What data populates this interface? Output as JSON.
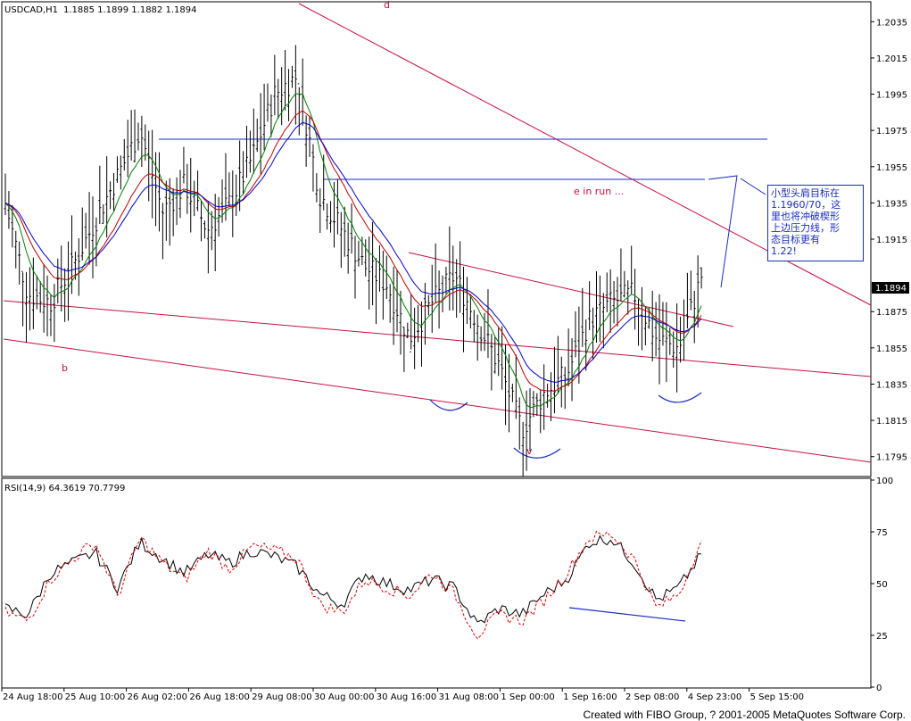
{
  "header": {
    "symbol": "USDCAD,H1",
    "ohlc": "1.1885 1.1899 1.1882 1.1894"
  },
  "annotations": {
    "d": "d",
    "b": "b",
    "v": "v",
    "e_in_run": "e in run ...",
    "note": "小型头肩目标在\n1.1960/70，这\n里也将冲破楔形\n上边压力线，形\n态目标更有\n1.22!"
  },
  "price_axis": {
    "ticks": [
      "1.2035",
      "1.2015",
      "1.1995",
      "1.1975",
      "1.1955",
      "1.1935",
      "1.1915",
      "1.1894",
      "1.1875",
      "1.1855",
      "1.1835",
      "1.1815",
      "1.1795"
    ],
    "current": "1.1894"
  },
  "rsi": {
    "label": "RSI(14,9) 64.3619 70.7799",
    "ticks": [
      "100",
      "75",
      "50",
      "25",
      "0"
    ]
  },
  "time_axis": {
    "ticks": [
      "24 Aug 18:00",
      "25 Aug 10:00",
      "26 Aug 02:00",
      "26 Aug 18:00",
      "29 Aug 08:00",
      "30 Aug 00:00",
      "30 Aug 16:00",
      "31 Aug 08:00",
      "1 Sep 00:00",
      "1 Sep 16:00",
      "2 Sep 08:00",
      "4 Sep 23:00",
      "5 Sep 15:00"
    ]
  },
  "footer": {
    "credit": "Created with FIBO Group, ? 2001-2005 MetaQuotes Software Corp."
  },
  "colors": {
    "bars": "#000000",
    "ma_fast": "#008000",
    "ma_mid": "#c00000",
    "ma_slow": "#0000cc",
    "trend": "#c8103c",
    "level": "#1a2cc0",
    "rsi": "#000000",
    "rsi_signal": "#e00000"
  },
  "chart_data": [
    {
      "type": "candlestick",
      "title": "USDCAD,H1",
      "ylim": [
        1.1785,
        1.2045
      ],
      "x": [
        "24 Aug 18:00",
        "25 Aug 10:00",
        "26 Aug 02:00",
        "26 Aug 18:00",
        "29 Aug 08:00",
        "30 Aug 00:00",
        "30 Aug 16:00",
        "31 Aug 08:00",
        "1 Sep 00:00",
        "1 Sep 16:00",
        "2 Sep 08:00",
        "4 Sep 23:00",
        "5 Sep 15:00"
      ],
      "close_path": [
        1.1935,
        1.1885,
        1.188,
        1.19,
        1.1925,
        1.195,
        1.1975,
        1.193,
        1.1945,
        1.192,
        1.1935,
        1.196,
        1.1995,
        1.2005,
        1.194,
        1.192,
        1.19,
        1.189,
        1.186,
        1.188,
        1.1895,
        1.187,
        1.1845,
        1.181,
        1.183,
        1.184,
        1.187,
        1.188,
        1.1885,
        1.186,
        1.1855,
        1.1894
      ],
      "levels": [
        1.1975,
        1.1953
      ],
      "last": 1.1894
    },
    {
      "type": "line",
      "title": "RSI(14,9)",
      "ylim": [
        0,
        100
      ],
      "series": [
        {
          "name": "RSI(14,9)",
          "values": [
            38,
            35,
            55,
            60,
            65,
            48,
            70,
            62,
            55,
            64,
            60,
            66,
            63,
            58,
            45,
            40,
            55,
            50,
            47,
            52,
            48,
            30,
            38,
            35,
            45,
            52,
            70,
            72,
            60,
            42,
            48,
            64
          ]
        },
        {
          "name": "",
          "values": [
            36,
            32,
            52,
            62,
            70,
            44,
            72,
            60,
            52,
            66,
            57,
            68,
            66,
            62,
            40,
            36,
            52,
            48,
            44,
            55,
            45,
            25,
            35,
            32,
            42,
            55,
            72,
            74,
            62,
            38,
            45,
            71
          ]
        }
      ],
      "last_values": [
        64.3619,
        70.7799
      ]
    }
  ]
}
